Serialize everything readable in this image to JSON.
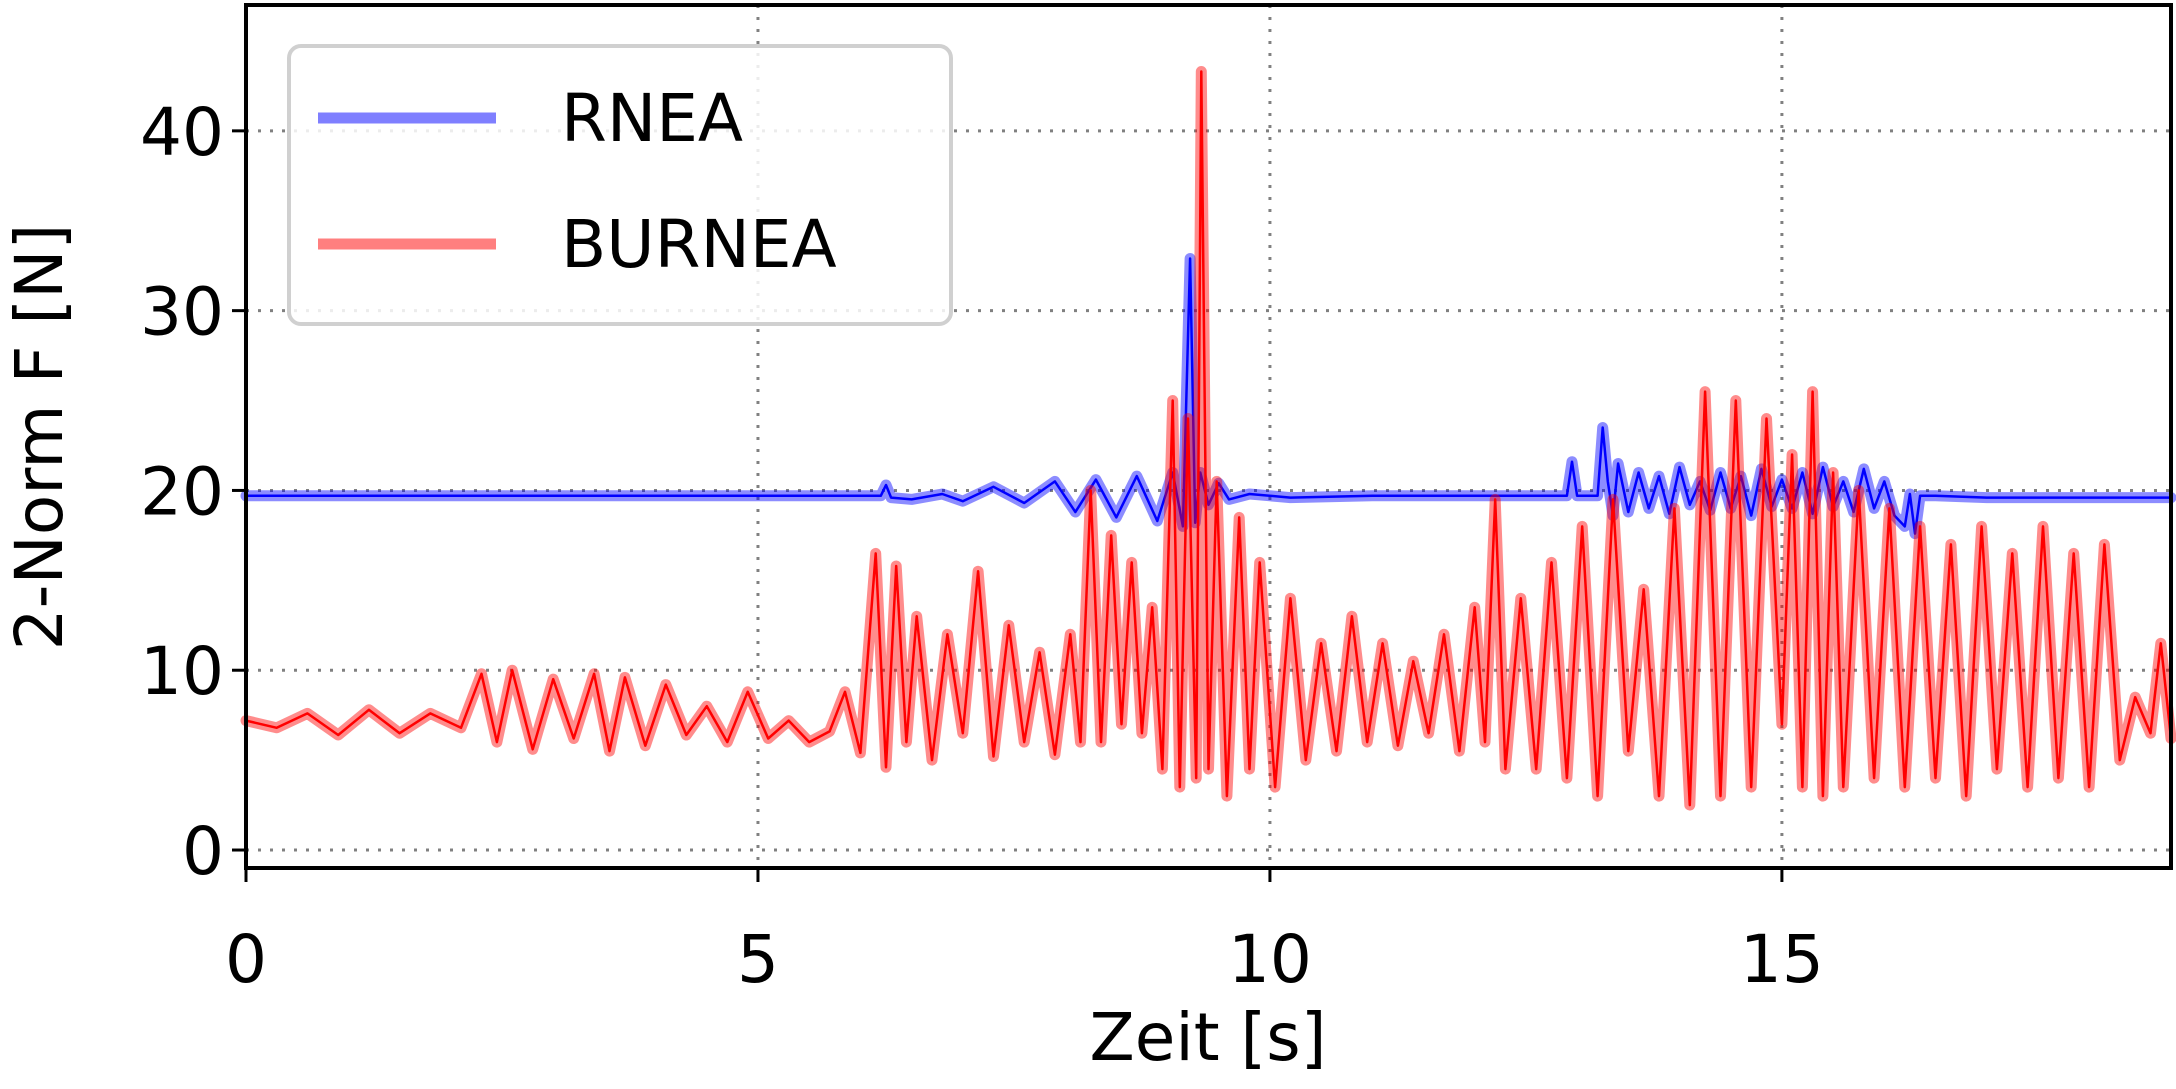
{
  "chart_data": {
    "type": "line",
    "title": "",
    "xlabel": "Zeit [s]",
    "ylabel": "2-Norm F [N]",
    "xlim": [
      0,
      18.8
    ],
    "ylim": [
      -1,
      47
    ],
    "xticks": [
      0,
      5,
      10,
      15
    ],
    "yticks": [
      0,
      10,
      20,
      30,
      40
    ],
    "xtick_labels": [
      "0",
      "5",
      "10",
      "15"
    ],
    "ytick_labels": [
      "0",
      "10",
      "20",
      "30",
      "40"
    ],
    "grid": "dotted",
    "legend": "top-left",
    "series": [
      {
        "name": "RNEA",
        "color": "#0000ff",
        "x": [
          0,
          6.2,
          6.25,
          6.3,
          6.5,
          6.8,
          7.0,
          7.3,
          7.6,
          7.9,
          8.1,
          8.3,
          8.5,
          8.7,
          8.9,
          9.05,
          9.15,
          9.22,
          9.27,
          9.32,
          9.4,
          9.5,
          9.6,
          9.8,
          10.2,
          11.0,
          12.0,
          12.9,
          12.95,
          13.0,
          13.05,
          13.1,
          13.2,
          13.25,
          13.3,
          13.35,
          13.4,
          13.5,
          13.6,
          13.7,
          13.8,
          13.9,
          14.0,
          14.1,
          14.2,
          14.3,
          14.4,
          14.5,
          14.6,
          14.7,
          14.8,
          14.9,
          15.0,
          15.1,
          15.2,
          15.3,
          15.4,
          15.5,
          15.6,
          15.7,
          15.8,
          15.9,
          16.0,
          16.1,
          16.2,
          16.25,
          16.3,
          16.35,
          16.5,
          17.0,
          18.8
        ],
        "values": [
          19.7,
          19.7,
          20.3,
          19.6,
          19.5,
          19.8,
          19.4,
          20.2,
          19.3,
          20.5,
          18.8,
          20.6,
          18.5,
          20.8,
          18.3,
          21.0,
          18.0,
          32.9,
          18.2,
          21.0,
          19.2,
          20.4,
          19.5,
          19.8,
          19.6,
          19.7,
          19.7,
          19.7,
          21.6,
          19.7,
          19.7,
          19.7,
          19.7,
          23.5,
          20.5,
          18.6,
          21.5,
          18.8,
          21.0,
          19.0,
          20.8,
          18.7,
          21.3,
          19.2,
          20.5,
          18.9,
          21.0,
          19.0,
          20.8,
          18.6,
          21.2,
          19.1,
          20.6,
          19.0,
          21.0,
          18.7,
          21.3,
          19.1,
          20.5,
          18.8,
          21.2,
          19.0,
          20.5,
          18.6,
          18.0,
          19.8,
          17.6,
          19.7,
          19.7,
          19.6,
          19.6
        ]
      },
      {
        "name": "BURNEA",
        "color": "#ff0000",
        "x": [
          0,
          0.3,
          0.6,
          0.9,
          1.2,
          1.5,
          1.8,
          2.1,
          2.3,
          2.45,
          2.6,
          2.8,
          3.0,
          3.2,
          3.4,
          3.55,
          3.7,
          3.9,
          4.1,
          4.3,
          4.5,
          4.7,
          4.9,
          5.1,
          5.3,
          5.5,
          5.7,
          5.85,
          6.0,
          6.15,
          6.25,
          6.35,
          6.45,
          6.55,
          6.7,
          6.85,
          7.0,
          7.15,
          7.3,
          7.45,
          7.6,
          7.75,
          7.9,
          8.05,
          8.15,
          8.25,
          8.35,
          8.45,
          8.55,
          8.65,
          8.75,
          8.85,
          8.95,
          9.05,
          9.12,
          9.2,
          9.28,
          9.33,
          9.4,
          9.48,
          9.58,
          9.7,
          9.8,
          9.9,
          10.05,
          10.2,
          10.35,
          10.5,
          10.65,
          10.8,
          10.95,
          11.1,
          11.25,
          11.4,
          11.55,
          11.7,
          11.85,
          12.0,
          12.1,
          12.2,
          12.3,
          12.45,
          12.6,
          12.75,
          12.9,
          13.05,
          13.2,
          13.35,
          13.5,
          13.65,
          13.8,
          13.95,
          14.1,
          14.25,
          14.4,
          14.55,
          14.7,
          14.85,
          15.0,
          15.1,
          15.2,
          15.3,
          15.4,
          15.5,
          15.6,
          15.75,
          15.9,
          16.05,
          16.2,
          16.35,
          16.5,
          16.65,
          16.8,
          16.95,
          17.1,
          17.25,
          17.4,
          17.55,
          17.7,
          17.85,
          18.0,
          18.15,
          18.3,
          18.45,
          18.6,
          18.7,
          18.8
        ],
        "values": [
          7.2,
          6.8,
          7.6,
          6.4,
          7.8,
          6.5,
          7.6,
          6.8,
          9.8,
          6.0,
          10.0,
          5.6,
          9.5,
          6.2,
          9.8,
          5.5,
          9.6,
          5.8,
          9.2,
          6.4,
          8.0,
          6.0,
          8.8,
          6.2,
          7.2,
          6.0,
          6.6,
          8.8,
          5.4,
          16.5,
          4.6,
          15.8,
          6.0,
          13.0,
          5.0,
          12.0,
          6.5,
          15.5,
          5.2,
          12.5,
          6.0,
          11.0,
          5.3,
          12.0,
          6.0,
          20.0,
          6.0,
          17.5,
          7.0,
          16.0,
          6.5,
          13.5,
          4.5,
          25.0,
          3.5,
          24.0,
          4.0,
          43.3,
          4.5,
          20.5,
          3.0,
          18.5,
          4.5,
          16.0,
          3.5,
          14.0,
          5.0,
          11.5,
          5.5,
          13.0,
          6.0,
          11.5,
          5.8,
          10.5,
          6.5,
          12.0,
          5.5,
          13.5,
          6.0,
          19.5,
          4.5,
          14.0,
          4.5,
          16.0,
          4.0,
          18.0,
          3.0,
          19.5,
          5.5,
          14.5,
          3.0,
          19.0,
          2.5,
          25.5,
          3.0,
          25.0,
          3.5,
          24.0,
          7.0,
          22.0,
          3.5,
          25.5,
          3.0,
          21.0,
          3.5,
          20.0,
          4.0,
          19.0,
          3.5,
          18.0,
          4.0,
          17.0,
          3.0,
          18.0,
          4.5,
          16.5,
          3.5,
          18.0,
          4.0,
          16.5,
          3.5,
          17.0,
          5.0,
          8.5,
          6.5,
          11.5,
          6.2
        ]
      }
    ]
  }
}
